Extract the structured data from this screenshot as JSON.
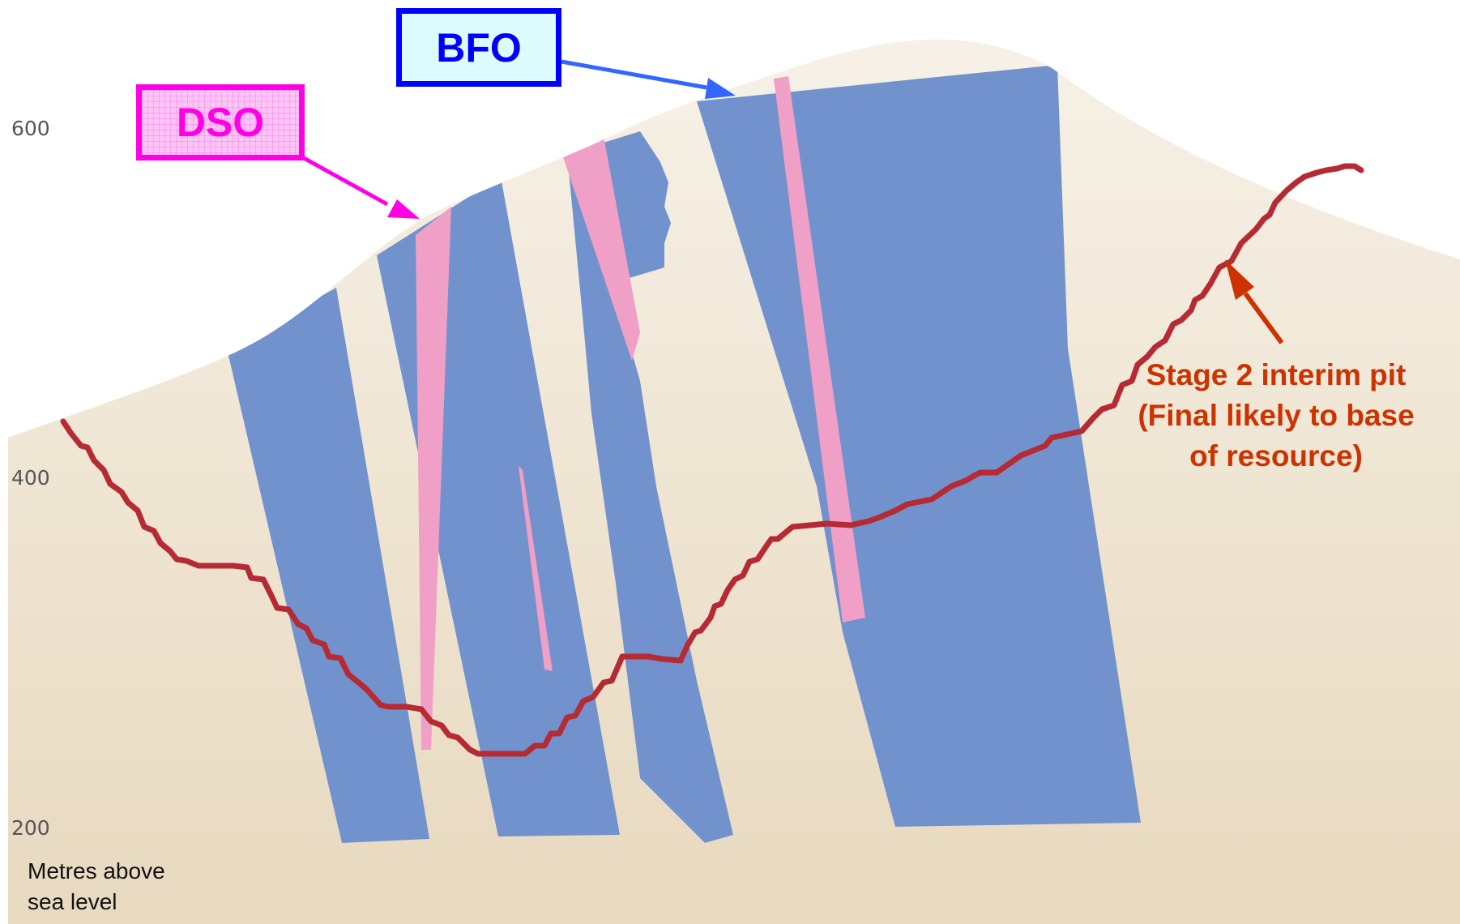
{
  "axis": {
    "ticks": [
      "600",
      "400",
      "200"
    ],
    "caption_line1": "Metres above",
    "caption_line2": "sea level"
  },
  "labels": {
    "dso": "DSO",
    "bfo": "BFO",
    "pit_line1": "Stage 2 interim pit",
    "pit_line2": "(Final likely to base",
    "pit_line3": "of resource)"
  },
  "colors": {
    "sky": "#ffffff",
    "ground_top": "#f6f1e7",
    "ground_bottom": "#e8d9bf",
    "bfo_fill": "#7192cc",
    "dso_fill": "#f09fc6",
    "pit_line": "#b52a33",
    "dso_accent": "#ff00e6",
    "bfo_accent": "#0000ff",
    "bfo_arrow": "#3366ff",
    "pit_accent": "#cc3300"
  }
}
